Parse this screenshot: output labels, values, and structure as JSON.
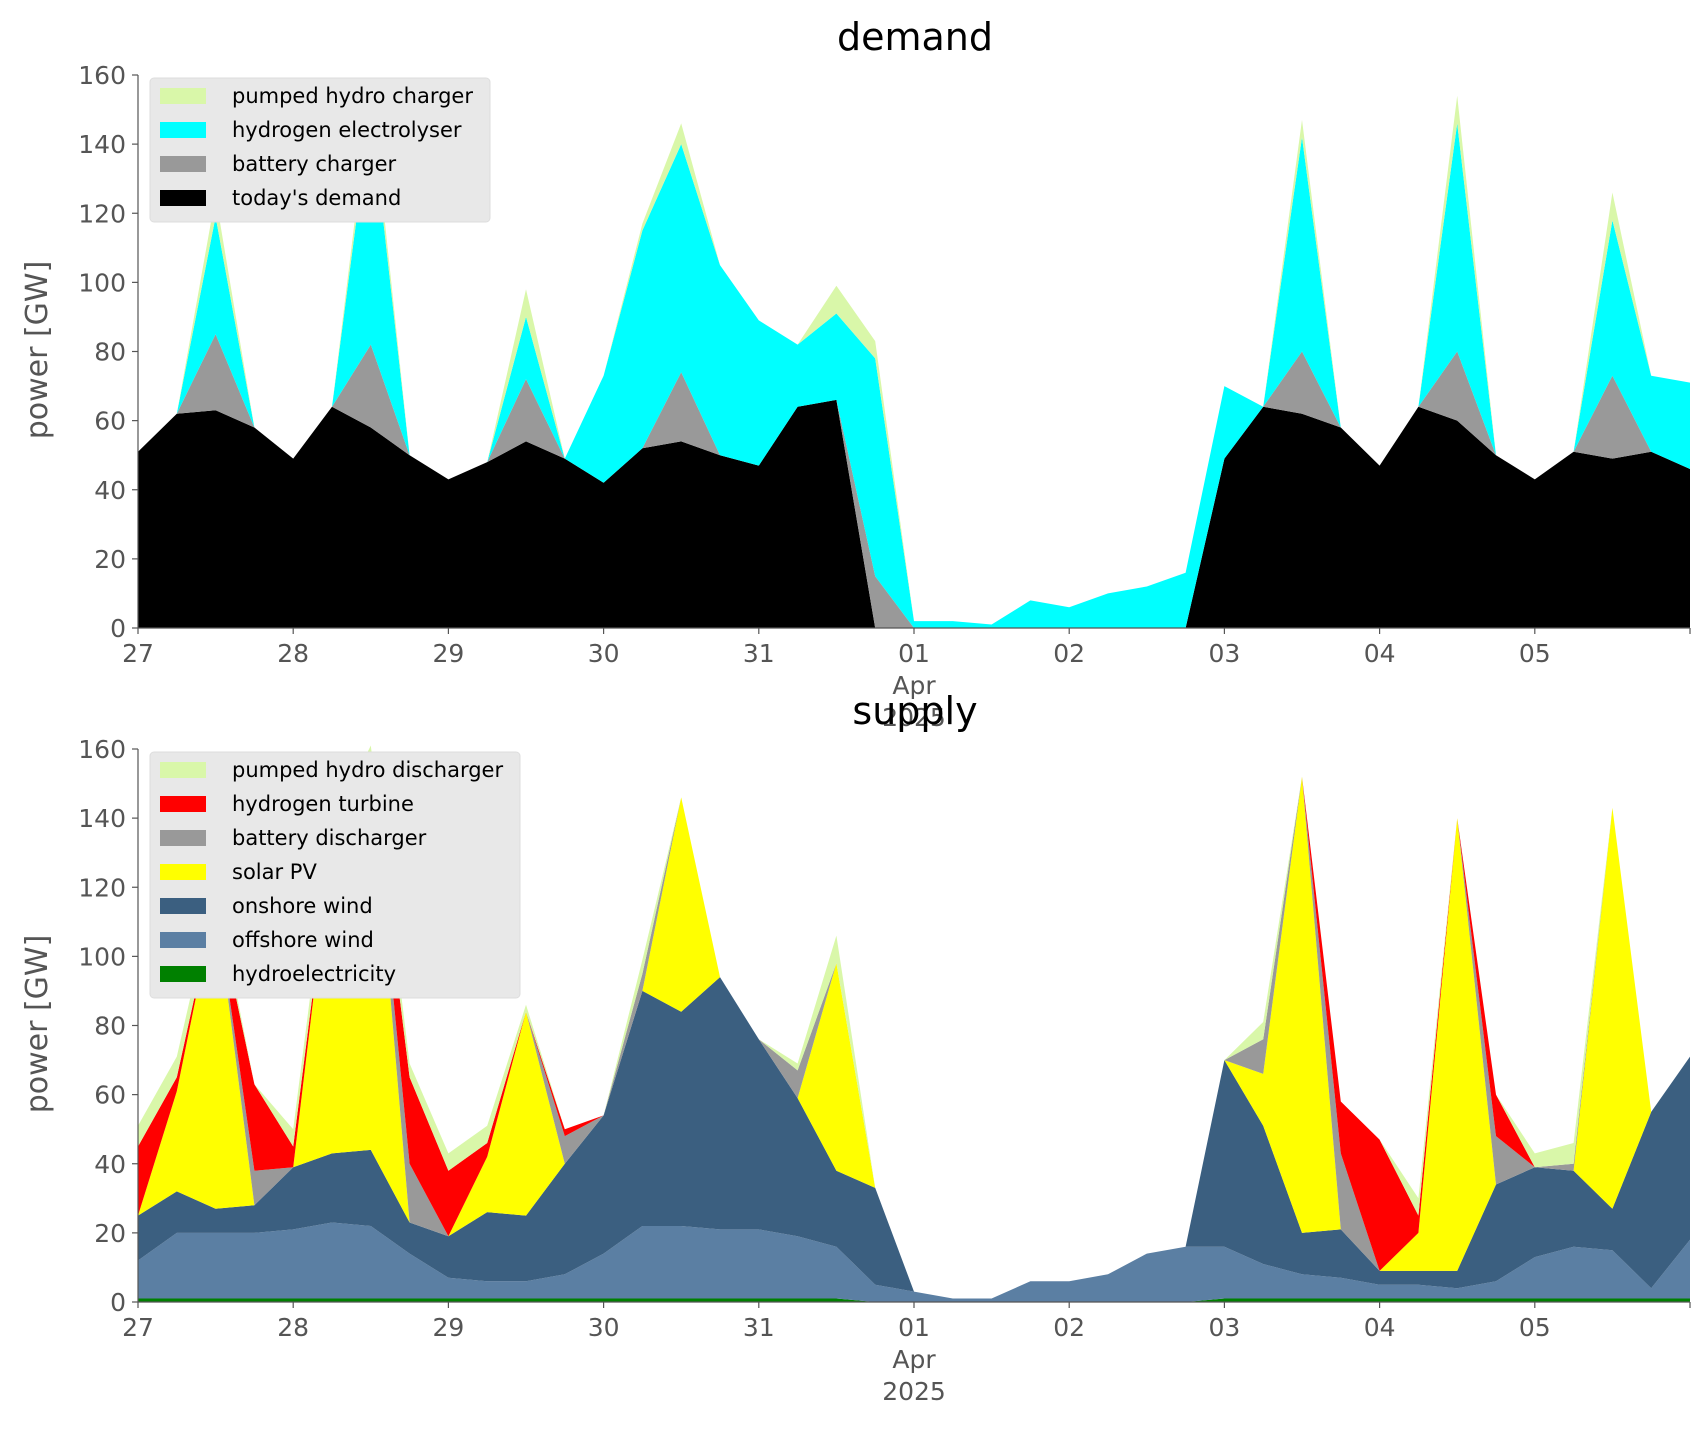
{
  "chart_data": [
    {
      "type": "area",
      "title": "demand",
      "xlabel": "",
      "ylabel": "power [GW]",
      "ylim": [
        0,
        160
      ],
      "yticks": [
        "0",
        "20",
        "40",
        "60",
        "80",
        "100",
        "120",
        "140",
        "160"
      ],
      "x_range": [
        "2025-03-27",
        "2025-04-06"
      ],
      "xticks": [
        "27",
        "28",
        "29",
        "30",
        "31",
        "01",
        "02",
        "03",
        "04",
        "05"
      ],
      "xtick_sublabel": [
        "Apr",
        "2025"
      ],
      "grid": false,
      "stacked": true,
      "legend_position": "top-left",
      "x": [
        "2025-03-27 00:00",
        "2025-03-27 06:00",
        "2025-03-27 12:00",
        "2025-03-27 18:00",
        "2025-03-28 00:00",
        "2025-03-28 06:00",
        "2025-03-28 12:00",
        "2025-03-28 18:00",
        "2025-03-29 00:00",
        "2025-03-29 06:00",
        "2025-03-29 12:00",
        "2025-03-29 18:00",
        "2025-03-30 00:00",
        "2025-03-30 06:00",
        "2025-03-30 12:00",
        "2025-03-30 18:00",
        "2025-03-31 00:00",
        "2025-03-31 06:00",
        "2025-03-31 12:00",
        "2025-03-31 18:00",
        "2025-04-01 00:00",
        "2025-04-01 06:00",
        "2025-04-01 12:00",
        "2025-04-01 18:00",
        "2025-04-02 00:00",
        "2025-04-02 06:00",
        "2025-04-02 12:00",
        "2025-04-02 18:00",
        "2025-04-03 00:00",
        "2025-04-03 06:00",
        "2025-04-03 12:00",
        "2025-04-03 18:00",
        "2025-04-04 00:00",
        "2025-04-04 06:00",
        "2025-04-04 12:00",
        "2025-04-04 18:00",
        "2025-04-05 00:00",
        "2025-04-05 06:00",
        "2025-04-05 12:00",
        "2025-04-05 18:00",
        "2025-04-06 00:00"
      ],
      "series": [
        {
          "name": "today's demand",
          "color": "#000000",
          "values": [
            51,
            62,
            63,
            58,
            49,
            64,
            58,
            50,
            43,
            48,
            54,
            49,
            42,
            52,
            54,
            50,
            47,
            64,
            66,
            0,
            0,
            0,
            0,
            0,
            0,
            0,
            0,
            0,
            49,
            64,
            62,
            58,
            47,
            64,
            60,
            50,
            43,
            51,
            49,
            51,
            46
          ]
        },
        {
          "name": "battery charger",
          "color": "#999999",
          "values": [
            0,
            0,
            22,
            0,
            0,
            0,
            24,
            0,
            0,
            0,
            18,
            0,
            0,
            0,
            20,
            0,
            0,
            0,
            0,
            15,
            0,
            0,
            0,
            0,
            0,
            0,
            0,
            0,
            0,
            0,
            18,
            0,
            0,
            0,
            20,
            0,
            0,
            0,
            24,
            0,
            0
          ]
        },
        {
          "name": "hydrogen electrolyser",
          "color": "#00ffff",
          "values": [
            0,
            0,
            34,
            0,
            0,
            0,
            68,
            0,
            0,
            0,
            18,
            0,
            31,
            63,
            66,
            55,
            42,
            18,
            25,
            63,
            2,
            2,
            1,
            8,
            6,
            10,
            12,
            16,
            21,
            0,
            62,
            0,
            0,
            0,
            66,
            0,
            0,
            0,
            45,
            22,
            25
          ]
        },
        {
          "name": "pumped hydro charger",
          "color": "#d9f7a9",
          "values": [
            0,
            0,
            6,
            0,
            0,
            0,
            6,
            0,
            0,
            0,
            8,
            0,
            0,
            2,
            6,
            0,
            0,
            0,
            8,
            5,
            0,
            0,
            0,
            0,
            0,
            0,
            0,
            0,
            0,
            0,
            5,
            0,
            0,
            0,
            8,
            0,
            0,
            0,
            8,
            0,
            0
          ]
        }
      ],
      "legend": [
        "pumped hydro charger",
        "hydrogen electrolyser",
        "battery charger",
        "today's demand"
      ]
    },
    {
      "type": "area",
      "title": "supply",
      "xlabel": "",
      "ylabel": "power [GW]",
      "ylim": [
        0,
        160
      ],
      "yticks": [
        "0",
        "20",
        "40",
        "60",
        "80",
        "100",
        "120",
        "140",
        "160"
      ],
      "x_range": [
        "2025-03-27",
        "2025-04-06"
      ],
      "xticks": [
        "27",
        "28",
        "29",
        "30",
        "31",
        "01",
        "02",
        "03",
        "04",
        "05"
      ],
      "xtick_sublabel": [
        "Apr",
        "2025"
      ],
      "grid": false,
      "stacked": true,
      "legend_position": "top-left",
      "x": [
        "2025-03-27 00:00",
        "2025-03-27 06:00",
        "2025-03-27 12:00",
        "2025-03-27 18:00",
        "2025-03-28 00:00",
        "2025-03-28 06:00",
        "2025-03-28 12:00",
        "2025-03-28 18:00",
        "2025-03-29 00:00",
        "2025-03-29 06:00",
        "2025-03-29 12:00",
        "2025-03-29 18:00",
        "2025-03-30 00:00",
        "2025-03-30 06:00",
        "2025-03-30 12:00",
        "2025-03-30 18:00",
        "2025-03-31 00:00",
        "2025-03-31 06:00",
        "2025-03-31 12:00",
        "2025-03-31 18:00",
        "2025-04-01 00:00",
        "2025-04-01 06:00",
        "2025-04-01 12:00",
        "2025-04-01 18:00",
        "2025-04-02 00:00",
        "2025-04-02 06:00",
        "2025-04-02 12:00",
        "2025-04-02 18:00",
        "2025-04-03 00:00",
        "2025-04-03 06:00",
        "2025-04-03 12:00",
        "2025-04-03 18:00",
        "2025-04-04 00:00",
        "2025-04-04 06:00",
        "2025-04-04 12:00",
        "2025-04-04 18:00",
        "2025-04-05 00:00",
        "2025-04-05 06:00",
        "2025-04-05 12:00",
        "2025-04-05 18:00",
        "2025-04-06 00:00"
      ],
      "series": [
        {
          "name": "hydroelectricity",
          "color": "#008000",
          "values": [
            1,
            1,
            1,
            1,
            1,
            1,
            1,
            1,
            1,
            1,
            1,
            1,
            1,
            1,
            1,
            1,
            1,
            1,
            1,
            0,
            0,
            0,
            0,
            0,
            0,
            0,
            0,
            0,
            1,
            1,
            1,
            1,
            1,
            1,
            1,
            1,
            1,
            1,
            1,
            1,
            1
          ]
        },
        {
          "name": "offshore wind",
          "color": "#5b7fa3",
          "values": [
            11,
            19,
            19,
            19,
            20,
            22,
            21,
            13,
            6,
            5,
            5,
            7,
            13,
            21,
            21,
            20,
            20,
            18,
            15,
            5,
            3,
            1,
            1,
            6,
            6,
            8,
            14,
            16,
            15,
            10,
            7,
            6,
            4,
            4,
            3,
            5,
            12,
            15,
            14,
            3,
            17
          ]
        },
        {
          "name": "onshore wind",
          "color": "#3b5f80",
          "values": [
            13,
            12,
            7,
            8,
            18,
            20,
            22,
            9,
            12,
            20,
            19,
            32,
            40,
            68,
            62,
            73,
            55,
            40,
            22,
            28,
            0,
            0,
            0,
            0,
            0,
            0,
            0,
            0,
            54,
            40,
            12,
            14,
            4,
            4,
            5,
            28,
            26,
            22,
            12,
            51,
            53
          ]
        },
        {
          "name": "solar PV",
          "color": "#ffff00",
          "values": [
            0,
            29,
            89,
            0,
            0,
            90,
            111,
            0,
            0,
            16,
            59,
            0,
            0,
            0,
            62,
            0,
            0,
            0,
            60,
            0,
            0,
            0,
            0,
            0,
            0,
            0,
            0,
            0,
            0,
            15,
            132,
            0,
            0,
            11,
            131,
            0,
            0,
            0,
            116,
            0,
            0
          ]
        },
        {
          "name": "battery discharger",
          "color": "#999999",
          "values": [
            0,
            0,
            0,
            10,
            0,
            0,
            0,
            17,
            0,
            0,
            0,
            8,
            0,
            5,
            0,
            0,
            0,
            8,
            0,
            0,
            0,
            0,
            0,
            0,
            0,
            0,
            0,
            0,
            0,
            10,
            0,
            22,
            0,
            0,
            0,
            14,
            0,
            2,
            0,
            0,
            0
          ]
        },
        {
          "name": "hydrogen turbine",
          "color": "#ff0000",
          "values": [
            20,
            4,
            0,
            25,
            6,
            0,
            0,
            25,
            19,
            4,
            0,
            2,
            0,
            0,
            0,
            0,
            0,
            0,
            0,
            0,
            0,
            0,
            0,
            0,
            0,
            0,
            0,
            0,
            0,
            0,
            0,
            15,
            38,
            5,
            0,
            12,
            0,
            0,
            0,
            0,
            0
          ]
        },
        {
          "name": "pumped hydro discharger",
          "color": "#d9f7a9",
          "values": [
            6,
            6,
            4,
            0,
            5,
            5,
            6,
            4,
            5,
            5,
            2,
            0,
            0,
            4,
            0,
            0,
            0,
            2,
            8,
            0,
            0,
            0,
            0,
            0,
            0,
            0,
            0,
            0,
            0,
            5,
            0,
            0,
            0,
            5,
            0,
            0,
            4,
            6,
            0,
            0,
            0
          ]
        }
      ],
      "legend": [
        "pumped hydro discharger",
        "hydrogen turbine",
        "battery discharger",
        "solar PV",
        "onshore wind",
        "offshore wind",
        "hydroelectricity"
      ]
    }
  ]
}
